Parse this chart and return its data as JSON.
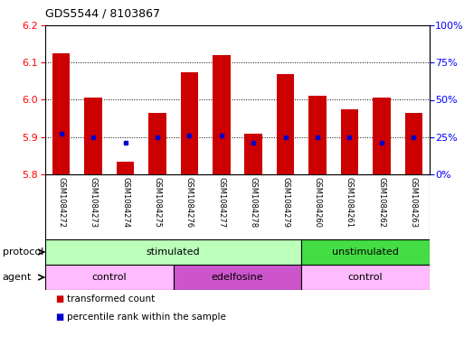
{
  "title": "GDS5544 / 8103867",
  "samples": [
    "GSM1084272",
    "GSM1084273",
    "GSM1084274",
    "GSM1084275",
    "GSM1084276",
    "GSM1084277",
    "GSM1084278",
    "GSM1084279",
    "GSM1084260",
    "GSM1084261",
    "GSM1084262",
    "GSM1084263"
  ],
  "bar_values": [
    6.125,
    6.005,
    5.835,
    5.965,
    6.075,
    6.12,
    5.91,
    6.07,
    6.01,
    5.975,
    6.005,
    5.965
  ],
  "bar_base": 5.8,
  "dot_values": [
    5.91,
    5.9,
    5.885,
    5.9,
    5.905,
    5.905,
    5.885,
    5.9,
    5.9,
    5.9,
    5.885,
    5.9
  ],
  "ylim": [
    5.8,
    6.2
  ],
  "yticks_left": [
    5.8,
    5.9,
    6.0,
    6.1,
    6.2
  ],
  "yticks_right": [
    0,
    25,
    50,
    75,
    100
  ],
  "ytick_labels_right": [
    "0%",
    "25%",
    "50%",
    "75%",
    "100%"
  ],
  "bar_color": "#cc0000",
  "dot_color": "#0000cc",
  "protocol_groups": [
    {
      "label": "stimulated",
      "start": 0,
      "end": 8,
      "color": "#bbffbb"
    },
    {
      "label": "unstimulated",
      "start": 8,
      "end": 12,
      "color": "#44dd44"
    }
  ],
  "agent_groups": [
    {
      "label": "control",
      "start": 0,
      "end": 4,
      "color": "#ffbbff"
    },
    {
      "label": "edelfosine",
      "start": 4,
      "end": 8,
      "color": "#cc55cc"
    },
    {
      "label": "control",
      "start": 8,
      "end": 12,
      "color": "#ffbbff"
    }
  ],
  "legend_items": [
    {
      "label": "transformed count",
      "color": "#cc0000"
    },
    {
      "label": "percentile rank within the sample",
      "color": "#0000cc"
    }
  ],
  "protocol_label": "protocol",
  "agent_label": "agent",
  "xlabels_bg": "#cccccc",
  "sample_divider_color": "#ffffff",
  "background_color": "#ffffff"
}
